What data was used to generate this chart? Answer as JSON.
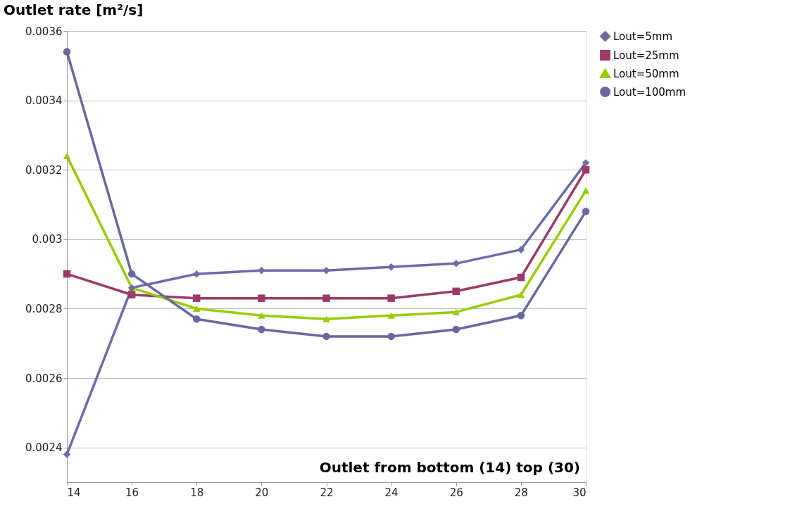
{
  "chart_data": {
    "type": "line",
    "ylabel": "Outlet rate [m²/s]",
    "xlabel": "Outlet from bottom (14) top (30)",
    "x": [
      14,
      16,
      18,
      20,
      22,
      24,
      26,
      28,
      30
    ],
    "series": [
      {
        "name": "Lout=5mm",
        "color": "#6b6ca6",
        "marker": "diamond",
        "values": [
          0.00238,
          0.00286,
          0.0029,
          0.00291,
          0.00291,
          0.00292,
          0.00293,
          0.00297,
          0.00322
        ]
      },
      {
        "name": "Lout=25mm",
        "color": "#9b3a6a",
        "marker": "square",
        "values": [
          0.0029,
          0.00284,
          0.00283,
          0.00283,
          0.00283,
          0.00283,
          0.00285,
          0.00289,
          0.0032
        ]
      },
      {
        "name": "Lout=50mm",
        "color": "#99cc00",
        "marker": "triangle",
        "values": [
          0.00324,
          0.00286,
          0.0028,
          0.00278,
          0.00277,
          0.00278,
          0.00279,
          0.00284,
          0.00314
        ]
      },
      {
        "name": "Lout=100mm",
        "color": "#67689e",
        "marker": "circle",
        "values": [
          0.00354,
          0.0029,
          0.00277,
          0.00274,
          0.00272,
          0.00272,
          0.00274,
          0.00278,
          0.00308
        ]
      }
    ],
    "xlim": [
      14,
      30
    ],
    "xticks": [
      14,
      16,
      18,
      20,
      22,
      24,
      26,
      28,
      30
    ],
    "ylim": [
      0.0023,
      0.0036
    ],
    "yticks": [
      0.0024,
      0.0026,
      0.0028,
      0.003,
      0.0032,
      0.0034,
      0.0036
    ],
    "grid": "y",
    "legend": "right",
    "line_style": "solid"
  }
}
